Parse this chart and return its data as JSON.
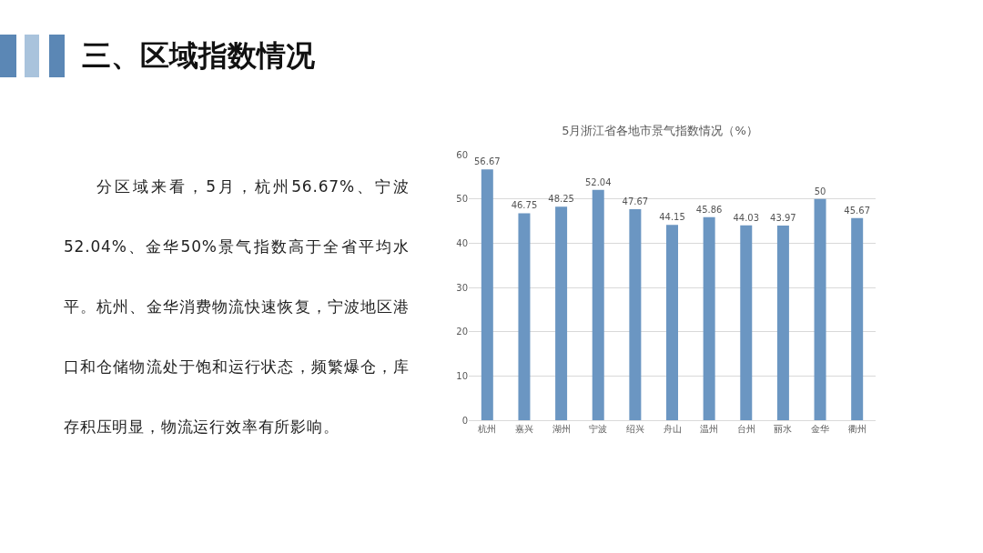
{
  "chart_data": {
    "type": "bar",
    "title": "5月浙江省各地市景气指数情况（%）",
    "annotations": [
      "三、区域指数情况",
      "分区域来看，5月，杭州56.67%、宁波52.04%、金华50%景气指数高于全省平均水平。杭州、金华消费物流快速恢复，宁波地区港口和仓储物流处于饱和运行状态，频繁爆仓，库存积压明显，物流运行效率有所影响。"
    ],
    "categories": [
      "杭州",
      "嘉兴",
      "湖州",
      "宁波",
      "绍兴",
      "舟山",
      "温州",
      "台州",
      "丽水",
      "金华",
      "衢州"
    ],
    "values": [
      56.67,
      46.75,
      48.25,
      52.04,
      47.67,
      44.15,
      45.86,
      44.03,
      43.97,
      50,
      45.67
    ],
    "color": "#6b96c2",
    "data_labels": true,
    "grid": "y",
    "ylim": [
      0,
      60
    ],
    "yticks": [
      0,
      10,
      20,
      30,
      40,
      50,
      60
    ]
  }
}
